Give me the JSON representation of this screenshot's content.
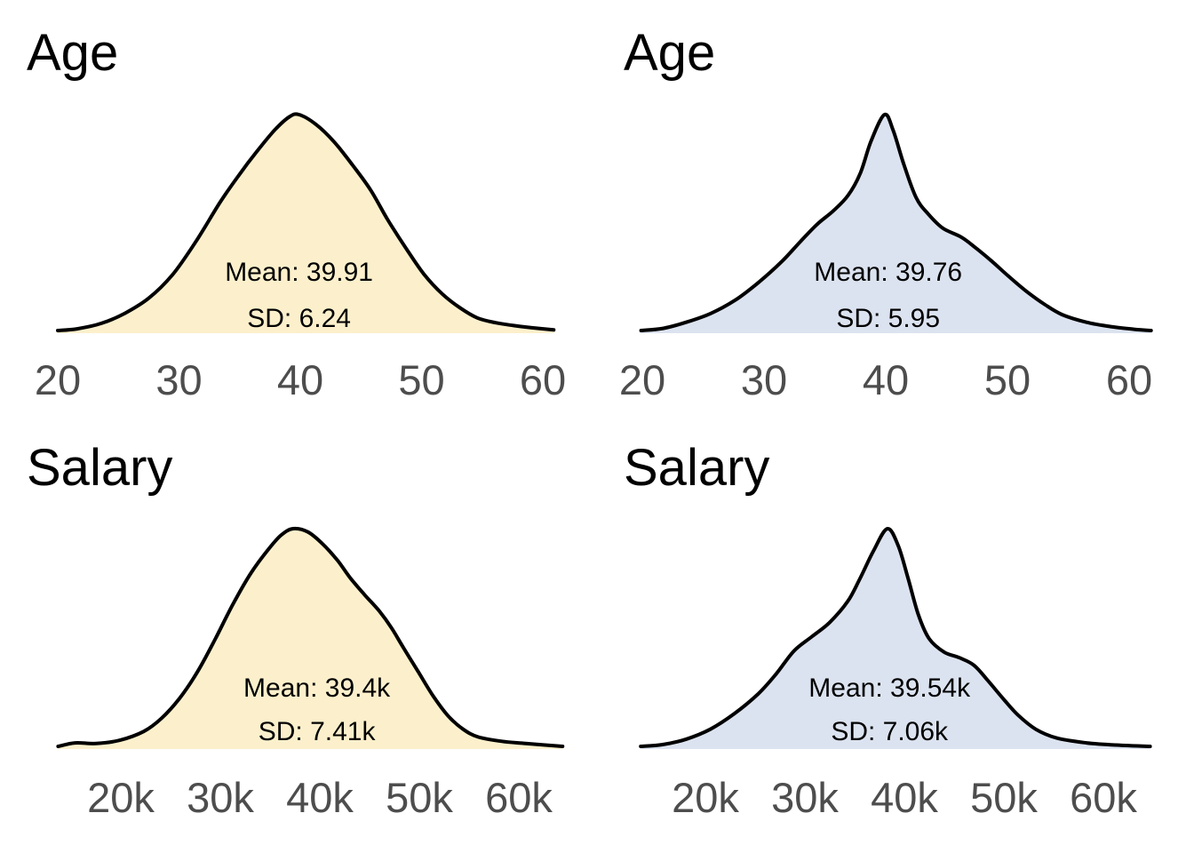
{
  "figure": {
    "background": "#ffffff",
    "description": "2x2 grid of kernel density plots comparing Age and Salary distributions for two groups"
  },
  "colors": {
    "stroke": "#000000",
    "fill_yellow": "#FCF0CC",
    "fill_blue": "#DCE3F0",
    "tick_label": "#4d4d4d",
    "text": "#000000"
  },
  "chart_data": [
    {
      "type": "area",
      "title": "Age",
      "group": "left-column-yellow",
      "mean": 39.91,
      "sd": 6.24,
      "annotation": {
        "mean_label": "Mean: 39.91",
        "sd_label": "SD: 6.24",
        "anchor_x": 39.9
      },
      "xlabel": "",
      "ylabel": "",
      "axis": {
        "min": 20,
        "max": 60
      },
      "x_tick_values": [
        20,
        30,
        40,
        50,
        60
      ],
      "x_tick_labels": [
        "20",
        "30",
        "40",
        "50",
        "60"
      ],
      "fill": "#FCF0CC",
      "curve": {
        "x": [
          20.0,
          21.6,
          23.6,
          25.5,
          27.5,
          29.5,
          31.4,
          33.4,
          34.9,
          36.4,
          37.9,
          39.1,
          39.9,
          41.3,
          42.8,
          44.3,
          45.8,
          47.2,
          48.7,
          50.2,
          51.7,
          53.2,
          54.6,
          56.1,
          57.6,
          59.1,
          60.9
        ],
        "density": [
          0.012,
          0.02,
          0.045,
          0.09,
          0.16,
          0.27,
          0.42,
          0.6,
          0.72,
          0.83,
          0.93,
          0.99,
          1.0,
          0.955,
          0.875,
          0.77,
          0.655,
          0.52,
          0.39,
          0.27,
          0.18,
          0.115,
          0.07,
          0.048,
          0.035,
          0.025,
          0.015
        ]
      }
    },
    {
      "type": "area",
      "title": "Age",
      "group": "right-column-blue",
      "mean": 39.76,
      "sd": 5.95,
      "annotation": {
        "mean_label": "Mean: 39.76",
        "sd_label": "SD: 5.95",
        "anchor_x": 40.2
      },
      "xlabel": "",
      "ylabel": "",
      "axis": {
        "min": 20,
        "max": 60
      },
      "x_tick_values": [
        20,
        30,
        40,
        50,
        60
      ],
      "x_tick_labels": [
        "20",
        "30",
        "40",
        "50",
        "60"
      ],
      "fill": "#DCE3F0",
      "curve": {
        "x": [
          19.9,
          21.7,
          23.6,
          25.6,
          27.6,
          29.5,
          31.5,
          33.0,
          34.4,
          35.7,
          36.9,
          37.9,
          38.8,
          39.9,
          40.6,
          41.5,
          42.5,
          43.5,
          44.7,
          46.2,
          47.4,
          48.7,
          50.1,
          51.6,
          53.1,
          54.5,
          56.5,
          58.5,
          60.4,
          61.8
        ],
        "density": [
          0.012,
          0.022,
          0.05,
          0.09,
          0.15,
          0.23,
          0.33,
          0.42,
          0.5,
          0.56,
          0.63,
          0.73,
          0.88,
          1.0,
          0.93,
          0.77,
          0.62,
          0.545,
          0.48,
          0.44,
          0.39,
          0.33,
          0.26,
          0.19,
          0.13,
          0.085,
          0.05,
          0.03,
          0.018,
          0.012
        ]
      }
    },
    {
      "type": "area",
      "title": "Salary",
      "group": "left-column-yellow",
      "mean": "39.4k",
      "sd": "7.41k",
      "annotation": {
        "mean_label": "Mean: 39.4k",
        "sd_label": "SD: 7.41k",
        "anchor_x": 39.7
      },
      "xlabel": "",
      "ylabel": "",
      "axis": {
        "min": 20,
        "max": 60,
        "unit": "k"
      },
      "x_tick_values": [
        20,
        30,
        40,
        50,
        60
      ],
      "x_tick_labels": [
        "20k",
        "30k",
        "40k",
        "50k",
        "60k"
      ],
      "fill": "#FCF0CC",
      "curve": {
        "x": [
          13.7,
          15.4,
          17.5,
          19.9,
          22.3,
          24.1,
          25.9,
          27.7,
          29.5,
          31.3,
          33.1,
          34.9,
          36.1,
          37.3,
          38.8,
          40.3,
          41.8,
          43.0,
          44.5,
          46.0,
          47.2,
          48.4,
          49.9,
          51.4,
          52.9,
          54.4,
          55.9,
          58.3,
          60.7,
          64.4
        ],
        "density": [
          0.012,
          0.028,
          0.025,
          0.04,
          0.08,
          0.14,
          0.23,
          0.35,
          0.5,
          0.66,
          0.8,
          0.91,
          0.97,
          1.0,
          0.985,
          0.93,
          0.855,
          0.78,
          0.7,
          0.625,
          0.55,
          0.46,
          0.35,
          0.24,
          0.15,
          0.09,
          0.055,
          0.035,
          0.025,
          0.012
        ]
      }
    },
    {
      "type": "area",
      "title": "Salary",
      "group": "right-column-blue",
      "mean": "39.54k",
      "sd": "7.06k",
      "annotation": {
        "mean_label": "Mean: 39.54k",
        "sd_label": "SD: 7.06k",
        "anchor_x": 38.5
      },
      "xlabel": "",
      "ylabel": "",
      "axis": {
        "min": 20,
        "max": 60,
        "unit": "k"
      },
      "x_tick_values": [
        20,
        30,
        40,
        50,
        60
      ],
      "x_tick_labels": [
        "20k",
        "30k",
        "40k",
        "50k",
        "60k"
      ],
      "fill": "#DCE3F0",
      "curve": {
        "x": [
          13.5,
          15.7,
          18.1,
          20.5,
          22.9,
          25.3,
          27.1,
          28.9,
          30.7,
          32.5,
          34.3,
          35.5,
          36.9,
          38.3,
          39.4,
          40.4,
          41.4,
          42.5,
          44.0,
          45.5,
          47.0,
          48.4,
          49.9,
          51.4,
          53.2,
          55.3,
          58.3,
          61.3,
          64.7
        ],
        "density": [
          0.012,
          0.02,
          0.045,
          0.09,
          0.16,
          0.25,
          0.34,
          0.445,
          0.51,
          0.575,
          0.67,
          0.77,
          0.9,
          1.0,
          0.92,
          0.77,
          0.61,
          0.5,
          0.44,
          0.415,
          0.38,
          0.31,
          0.23,
          0.155,
          0.09,
          0.05,
          0.028,
          0.018,
          0.012
        ]
      }
    }
  ]
}
